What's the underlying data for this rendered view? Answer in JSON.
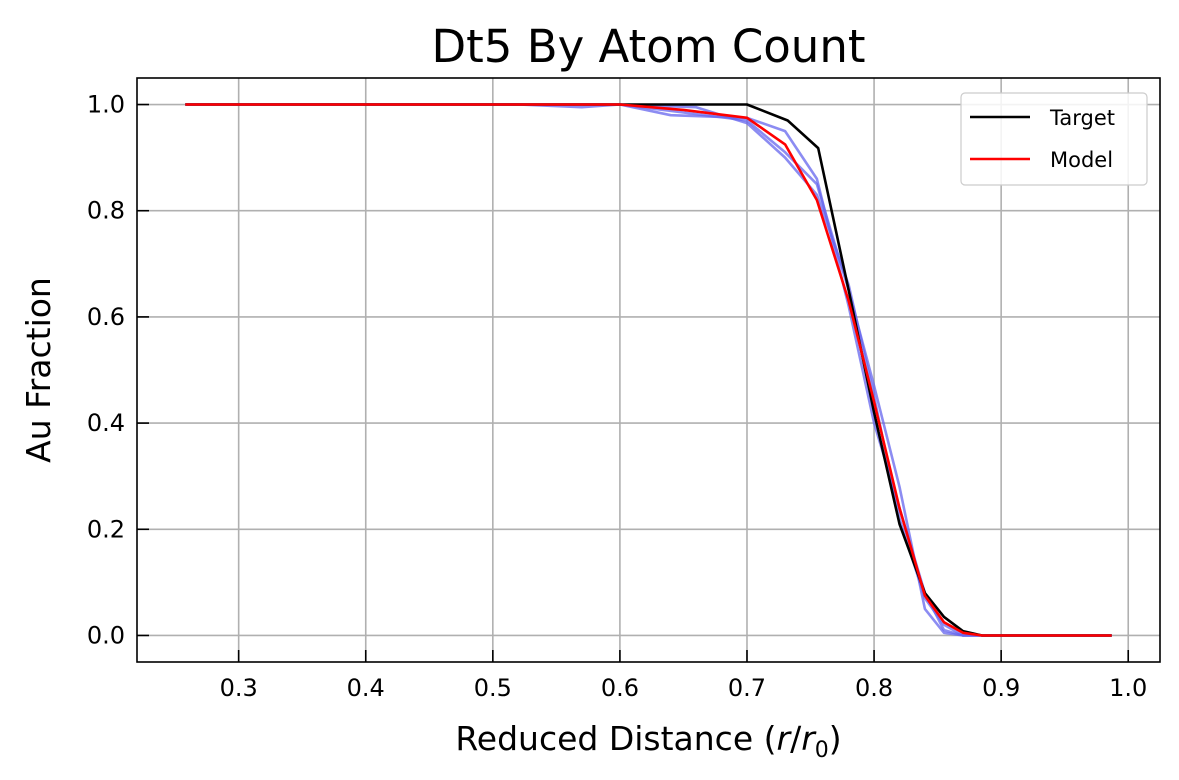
{
  "chart_data": {
    "type": "line",
    "title": "Dt5 By Atom Count",
    "xlabel": {
      "prefix": "Reduced Distance (",
      "var1": "r",
      "slash": "/",
      "var2": "r",
      "sub": "0",
      "suffix": ")"
    },
    "ylabel": "Au Fraction",
    "xlim": [
      0.22,
      1.025
    ],
    "ylim": [
      -0.05,
      1.05
    ],
    "xticks": [
      0.3,
      0.4,
      0.5,
      0.6,
      0.7,
      0.8,
      0.9,
      1.0
    ],
    "xtick_labels": [
      "0.3",
      "0.4",
      "0.5",
      "0.6",
      "0.7",
      "0.8",
      "0.9",
      "1.0"
    ],
    "yticks": [
      0.0,
      0.2,
      0.4,
      0.6,
      0.8,
      1.0
    ],
    "ytick_labels": [
      "0.0",
      "0.2",
      "0.4",
      "0.6",
      "0.8",
      "1.0"
    ],
    "grid": true,
    "legend_position": "top-right",
    "series": [
      {
        "name": "Target",
        "color": "#000000",
        "in_legend": true,
        "x": [
          0.258,
          0.6,
          0.7,
          0.732,
          0.756,
          0.78,
          0.8,
          0.82,
          0.84,
          0.855,
          0.87,
          0.885,
          0.9,
          0.987
        ],
        "y": [
          1.0,
          1.0,
          1.0,
          0.97,
          0.918,
          0.65,
          0.42,
          0.21,
          0.08,
          0.035,
          0.008,
          0.0,
          0.0,
          0.0
        ]
      },
      {
        "name": "Model",
        "color": "#ff0000",
        "in_legend": true,
        "x": [
          0.258,
          0.55,
          0.6,
          0.65,
          0.7,
          0.73,
          0.755,
          0.78,
          0.8,
          0.82,
          0.84,
          0.855,
          0.87,
          0.885,
          0.9,
          0.987
        ],
        "y": [
          1.0,
          1.0,
          1.0,
          0.99,
          0.975,
          0.925,
          0.82,
          0.63,
          0.44,
          0.24,
          0.075,
          0.025,
          0.005,
          0.0,
          0.0,
          0.0
        ]
      },
      {
        "name": "",
        "color": "#6666ee",
        "in_legend": false,
        "x": [
          0.258,
          0.52,
          0.57,
          0.6,
          0.65,
          0.7,
          0.73,
          0.755,
          0.78,
          0.8,
          0.82,
          0.84,
          0.855,
          0.87,
          0.9,
          0.987
        ],
        "y": [
          1.0,
          1.0,
          0.995,
          1.0,
          0.985,
          0.97,
          0.91,
          0.85,
          0.65,
          0.47,
          0.28,
          0.05,
          0.005,
          0.0,
          0.0,
          0.0
        ]
      },
      {
        "name": "",
        "color": "#6666ee",
        "in_legend": false,
        "x": [
          0.258,
          0.55,
          0.6,
          0.64,
          0.7,
          0.73,
          0.755,
          0.78,
          0.8,
          0.82,
          0.84,
          0.855,
          0.87,
          0.9,
          0.987
        ],
        "y": [
          1.0,
          1.0,
          1.0,
          0.98,
          0.975,
          0.95,
          0.86,
          0.62,
          0.4,
          0.24,
          0.08,
          0.01,
          0.0,
          0.0,
          0.0
        ]
      },
      {
        "name": "",
        "color": "#6666ee",
        "in_legend": false,
        "x": [
          0.258,
          0.55,
          0.6,
          0.66,
          0.7,
          0.73,
          0.755,
          0.78,
          0.8,
          0.82,
          0.84,
          0.855,
          0.87,
          0.9,
          0.987
        ],
        "y": [
          1.0,
          1.0,
          1.0,
          0.995,
          0.965,
          0.9,
          0.83,
          0.66,
          0.45,
          0.22,
          0.07,
          0.02,
          0.0,
          0.0,
          0.0
        ]
      }
    ]
  }
}
